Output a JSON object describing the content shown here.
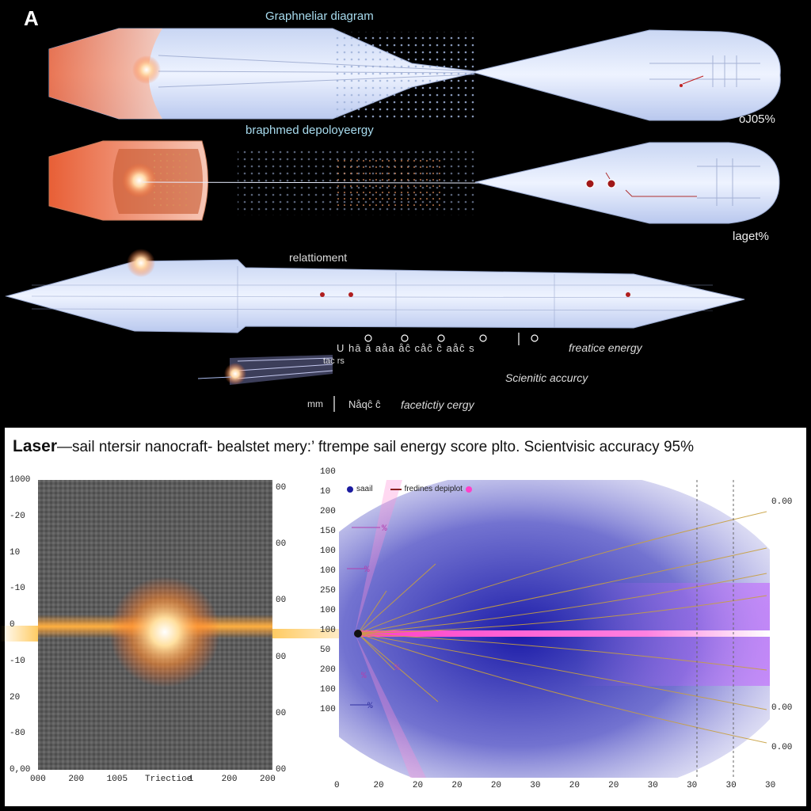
{
  "panel_letter": "A",
  "top": {
    "diagram_1_title": "Graphneliar diagram",
    "diagram_1_value": "oJ05%",
    "diagram_2_title": "braphmed depoloyeergy",
    "diagram_2_value": "laget%",
    "diagram_3_title": "relattioment",
    "formula_text": "U hā ā aåa åĉ cåĉ ĉ aåĉ s",
    "reatice_energy": "freatice energy",
    "probe_label": "tac rs",
    "scientific_accuracy": "Scienitic accurcy",
    "mm_label": "mm",
    "bottom_symbols": "Nåqĉ ĉ",
    "faceticty_cergy": "facetictiy cergy"
  },
  "plot": {
    "title_prefix": "Laser",
    "title_rest": "—sail ntersir nanocraft- bealstet mery:’ ftrempe sail energy score plto.  Scientvisic accuracy 95%",
    "colors": {
      "beam": "#ff40c8",
      "hot": "#ffcc66",
      "blue": "#1c1ca0",
      "gray": "#5a5a5a"
    },
    "left_y_ticks": [
      "1000",
      "-20",
      "10",
      "-10",
      "0",
      "-10",
      "20",
      "-80",
      "0,00"
    ],
    "left_right_ticks": [
      "00",
      "00",
      "00",
      "00",
      "00",
      "00"
    ],
    "left_x_ticks": [
      "000",
      "200",
      "1005",
      "Triectice",
      "-1",
      "200",
      "200"
    ],
    "right_y_ticks": [
      "100",
      "10",
      "200",
      "150",
      "100",
      "100",
      "250",
      "100",
      "100",
      "50",
      "200",
      "100",
      "100"
    ],
    "right_x_ticks": [
      "0",
      "20",
      "20",
      "20",
      "20",
      "30",
      "20",
      "20",
      "30",
      "30",
      "30",
      "30"
    ],
    "right_axis_ticks": [
      "0.00",
      "0.00",
      "0.00"
    ],
    "legend_sail": "saail",
    "legend_depth": "fredines depiplot",
    "pct_labels": [
      "%",
      "%",
      "%",
      "%",
      "%"
    ]
  }
}
